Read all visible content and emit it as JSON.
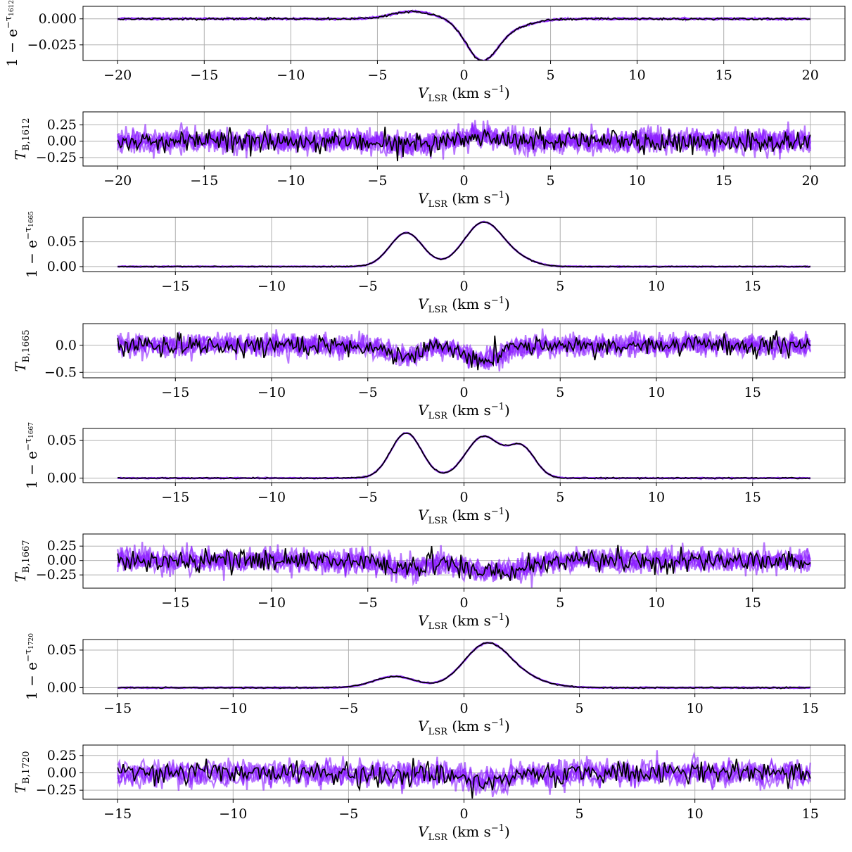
{
  "colors": {
    "model": "#8a1cff",
    "data": "#000000",
    "grid": "#b0b0b0"
  },
  "chart_data": [
    {
      "type": "line",
      "ylabel": "1 − e^{−τ1612}",
      "ylabel_parts": [
        "1 − e",
        "−τ",
        "1612"
      ],
      "xlabel": "V_LSR (km s⁻¹)",
      "xlabel_parts": [
        "V",
        "LSR",
        " (km s",
        "−1",
        ")"
      ],
      "xlim": [
        -22,
        22
      ],
      "ylim": [
        -0.04,
        0.012
      ],
      "xticks": [
        -20,
        -15,
        -10,
        -5,
        0,
        5,
        10,
        15,
        20
      ],
      "xtick_labels": [
        "−20",
        "−15",
        "−10",
        "−5",
        "0",
        "5",
        "10",
        "15",
        "20"
      ],
      "yticks": [
        0.0,
        -0.025
      ],
      "ytick_labels": [
        "0.000",
        "−0.025"
      ],
      "grid": true,
      "x_range": [
        -20,
        20
      ],
      "noise": 0.0008,
      "components": [
        {
          "center": -3.0,
          "amplitude": 0.007,
          "width": 1.2
        },
        {
          "center": 1.0,
          "amplitude": -0.036,
          "width": 0.9
        },
        {
          "center": 2.5,
          "amplitude": -0.008,
          "width": 1.3
        }
      ]
    },
    {
      "type": "line",
      "ylabel": "T_{B,1612}",
      "ylabel_parts": [
        "T",
        "B,1612"
      ],
      "xlabel": "V_LSR (km s⁻¹)",
      "xlabel_parts": [
        "V",
        "LSR",
        " (km s",
        "−1",
        ")"
      ],
      "xlim": [
        -22,
        22
      ],
      "ylim": [
        -0.38,
        0.45
      ],
      "xticks": [
        -20,
        -15,
        -10,
        -5,
        0,
        5,
        10,
        15,
        20
      ],
      "xtick_labels": [
        "−20",
        "−15",
        "−10",
        "−5",
        "0",
        "5",
        "10",
        "15",
        "20"
      ],
      "yticks": [
        0.25,
        0.0,
        -0.25
      ],
      "ytick_labels": [
        "0.25",
        "0.00",
        "−0.25"
      ],
      "grid": true,
      "x_range": [
        -20,
        20
      ],
      "noise": 0.09,
      "components": [
        {
          "center": -3.0,
          "amplitude": -0.04,
          "width": 1.0
        },
        {
          "center": 1.0,
          "amplitude": 0.1,
          "width": 1.0
        }
      ]
    },
    {
      "type": "line",
      "ylabel": "1 − e^{−τ1665}",
      "ylabel_parts": [
        "1 − e",
        "−τ",
        "1665"
      ],
      "xlabel": "V_LSR (km s⁻¹)",
      "xlabel_parts": [
        "V",
        "LSR",
        " (km s",
        "−1",
        ")"
      ],
      "xlim": [
        -19.8,
        19.8
      ],
      "ylim": [
        -0.01,
        0.099
      ],
      "xticks": [
        -15,
        -10,
        -5,
        0,
        5,
        10,
        15
      ],
      "xtick_labels": [
        "−15",
        "−10",
        "−5",
        "0",
        "5",
        "10",
        "15"
      ],
      "yticks": [
        0.05,
        0.0
      ],
      "ytick_labels": [
        "0.05",
        "0.00"
      ],
      "grid": true,
      "x_range": [
        -18,
        18
      ],
      "noise": 0.0008,
      "components": [
        {
          "center": -3.0,
          "amplitude": 0.068,
          "width": 0.85
        },
        {
          "center": 1.0,
          "amplitude": 0.088,
          "width": 1.0
        },
        {
          "center": 2.8,
          "amplitude": 0.012,
          "width": 0.9
        }
      ]
    },
    {
      "type": "line",
      "ylabel": "T_{B,1665}",
      "ylabel_parts": [
        "T",
        "B,1665"
      ],
      "xlabel": "V_LSR (km s⁻¹)",
      "xlabel_parts": [
        "V",
        "LSR",
        " (km s",
        "−1",
        ")"
      ],
      "xlim": [
        -19.8,
        19.8
      ],
      "ylim": [
        -0.6,
        0.4
      ],
      "xticks": [
        -15,
        -10,
        -5,
        0,
        5,
        10,
        15
      ],
      "xtick_labels": [
        "−15",
        "−10",
        "−5",
        "0",
        "5",
        "10",
        "15"
      ],
      "yticks": [
        0.0,
        -0.5
      ],
      "ytick_labels": [
        "0.0",
        "−0.5"
      ],
      "grid": true,
      "x_range": [
        -18,
        18
      ],
      "noise": 0.1,
      "components": [
        {
          "center": -3.0,
          "amplitude": -0.22,
          "width": 0.8
        },
        {
          "center": 1.0,
          "amplitude": -0.28,
          "width": 1.0
        }
      ]
    },
    {
      "type": "line",
      "ylabel": "1 − e^{−τ1667}",
      "ylabel_parts": [
        "1 − e",
        "−τ",
        "1667"
      ],
      "xlabel": "V_LSR (km s⁻¹)",
      "xlabel_parts": [
        "V",
        "LSR",
        " (km s",
        "−1",
        ")"
      ],
      "xlim": [
        -19.8,
        19.8
      ],
      "ylim": [
        -0.006,
        0.066
      ],
      "xticks": [
        -15,
        -10,
        -5,
        0,
        5,
        10,
        15
      ],
      "xtick_labels": [
        "−15",
        "−10",
        "−5",
        "0",
        "5",
        "10",
        "15"
      ],
      "yticks": [
        0.05,
        0.0
      ],
      "ytick_labels": [
        "0.05",
        "0.00"
      ],
      "grid": true,
      "x_range": [
        -18,
        18
      ],
      "noise": 0.0006,
      "components": [
        {
          "center": -3.0,
          "amplitude": 0.06,
          "width": 0.8
        },
        {
          "center": 1.0,
          "amplitude": 0.055,
          "width": 0.9
        },
        {
          "center": 3.0,
          "amplitude": 0.04,
          "width": 0.7
        }
      ]
    },
    {
      "type": "line",
      "ylabel": "T_{B,1667}",
      "ylabel_parts": [
        "T",
        "B,1667"
      ],
      "xlabel": "V_LSR (km s⁻¹)",
      "xlabel_parts": [
        "V",
        "LSR",
        " (km s",
        "−1",
        ")"
      ],
      "xlim": [
        -19.8,
        19.8
      ],
      "ylim": [
        -0.48,
        0.46
      ],
      "xticks": [
        -15,
        -10,
        -5,
        0,
        5,
        10,
        15
      ],
      "xtick_labels": [
        "−15",
        "−10",
        "−5",
        "0",
        "5",
        "10",
        "15"
      ],
      "yticks": [
        0.25,
        0.0,
        -0.25
      ],
      "ytick_labels": [
        "0.25",
        "0.00",
        "−0.25"
      ],
      "grid": true,
      "x_range": [
        -18,
        18
      ],
      "noise": 0.1,
      "components": [
        {
          "center": -3.0,
          "amplitude": -0.15,
          "width": 0.9
        },
        {
          "center": 1.0,
          "amplitude": -0.18,
          "width": 1.1
        },
        {
          "center": 3.0,
          "amplitude": -0.1,
          "width": 0.8
        }
      ]
    },
    {
      "type": "line",
      "ylabel": "1 − e^{−τ1720}",
      "ylabel_parts": [
        "1 − e",
        "−τ",
        "1720"
      ],
      "xlabel": "V_LSR (km s⁻¹)",
      "xlabel_parts": [
        "V",
        "LSR",
        " (km s",
        "−1",
        ")"
      ],
      "xlim": [
        -16.5,
        16.5
      ],
      "ylim": [
        -0.008,
        0.064
      ],
      "xticks": [
        -15,
        -10,
        -5,
        0,
        5,
        10,
        15
      ],
      "xtick_labels": [
        "−15",
        "−10",
        "−5",
        "0",
        "5",
        "10",
        "15"
      ],
      "yticks": [
        0.05,
        0.0
      ],
      "ytick_labels": [
        "0.05",
        "0.00"
      ],
      "grid": true,
      "x_range": [
        -15,
        15
      ],
      "noise": 0.0007,
      "components": [
        {
          "center": -3.0,
          "amplitude": 0.015,
          "width": 0.9
        },
        {
          "center": 1.0,
          "amplitude": 0.058,
          "width": 1.0
        },
        {
          "center": 2.8,
          "amplitude": 0.008,
          "width": 1.0
        }
      ]
    },
    {
      "type": "line",
      "ylabel": "T_{B,1720}",
      "ylabel_parts": [
        "T",
        "B,1720"
      ],
      "xlabel": "V_LSR (km s⁻¹)",
      "xlabel_parts": [
        "V",
        "LSR",
        " (km s",
        "−1",
        ")"
      ],
      "xlim": [
        -16.5,
        16.5
      ],
      "ylim": [
        -0.38,
        0.4
      ],
      "xticks": [
        -15,
        -10,
        -5,
        0,
        5,
        10,
        15
      ],
      "xtick_labels": [
        "−15",
        "−10",
        "−5",
        "0",
        "5",
        "10",
        "15"
      ],
      "yticks": [
        0.25,
        0.0,
        -0.25
      ],
      "ytick_labels": [
        "0.25",
        "0.00",
        "−0.25"
      ],
      "grid": true,
      "x_range": [
        -15,
        15
      ],
      "noise": 0.09,
      "components": [
        {
          "center": -3.0,
          "amplitude": -0.03,
          "width": 0.9
        },
        {
          "center": 1.0,
          "amplitude": -0.12,
          "width": 1.0
        }
      ]
    }
  ]
}
